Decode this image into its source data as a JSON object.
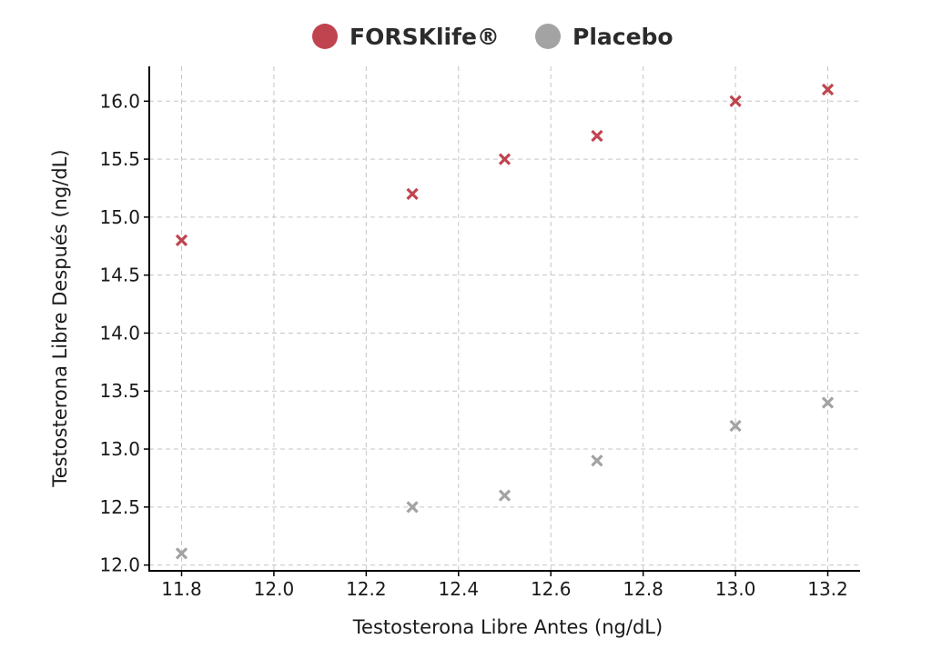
{
  "chart_data": {
    "type": "scatter",
    "xlabel": "Testosterona Libre Antes (ng/dL)",
    "ylabel": "Testosterona Libre Después (ng/dL)",
    "xlim": [
      11.73,
      13.27
    ],
    "ylim": [
      11.95,
      16.3
    ],
    "xticks": [
      11.8,
      12.0,
      12.2,
      12.4,
      12.6,
      12.8,
      13.0,
      13.2
    ],
    "xtick_labels": [
      "11.8",
      "12.0",
      "12.2",
      "12.4",
      "12.6",
      "12.8",
      "13.0",
      "13.2"
    ],
    "yticks": [
      12.0,
      12.5,
      13.0,
      13.5,
      14.0,
      14.5,
      15.0,
      15.5,
      16.0
    ],
    "ytick_labels": [
      "12.0",
      "12.5",
      "13.0",
      "13.5",
      "14.0",
      "14.5",
      "15.0",
      "15.5",
      "16.0"
    ],
    "grid": true,
    "legend_placement": "top-center",
    "marker": "x",
    "series": [
      {
        "name": "FORSKlife®",
        "color": "#c0444f",
        "x": [
          11.8,
          12.3,
          12.5,
          12.7,
          13.0,
          13.2
        ],
        "y": [
          14.8,
          15.2,
          15.5,
          15.7,
          16.0,
          16.1
        ]
      },
      {
        "name": "Placebo",
        "color": "#a3a3a3",
        "x": [
          11.8,
          12.3,
          12.5,
          12.7,
          13.0,
          13.2
        ],
        "y": [
          12.1,
          12.5,
          12.6,
          12.9,
          13.2,
          13.4
        ]
      }
    ]
  }
}
